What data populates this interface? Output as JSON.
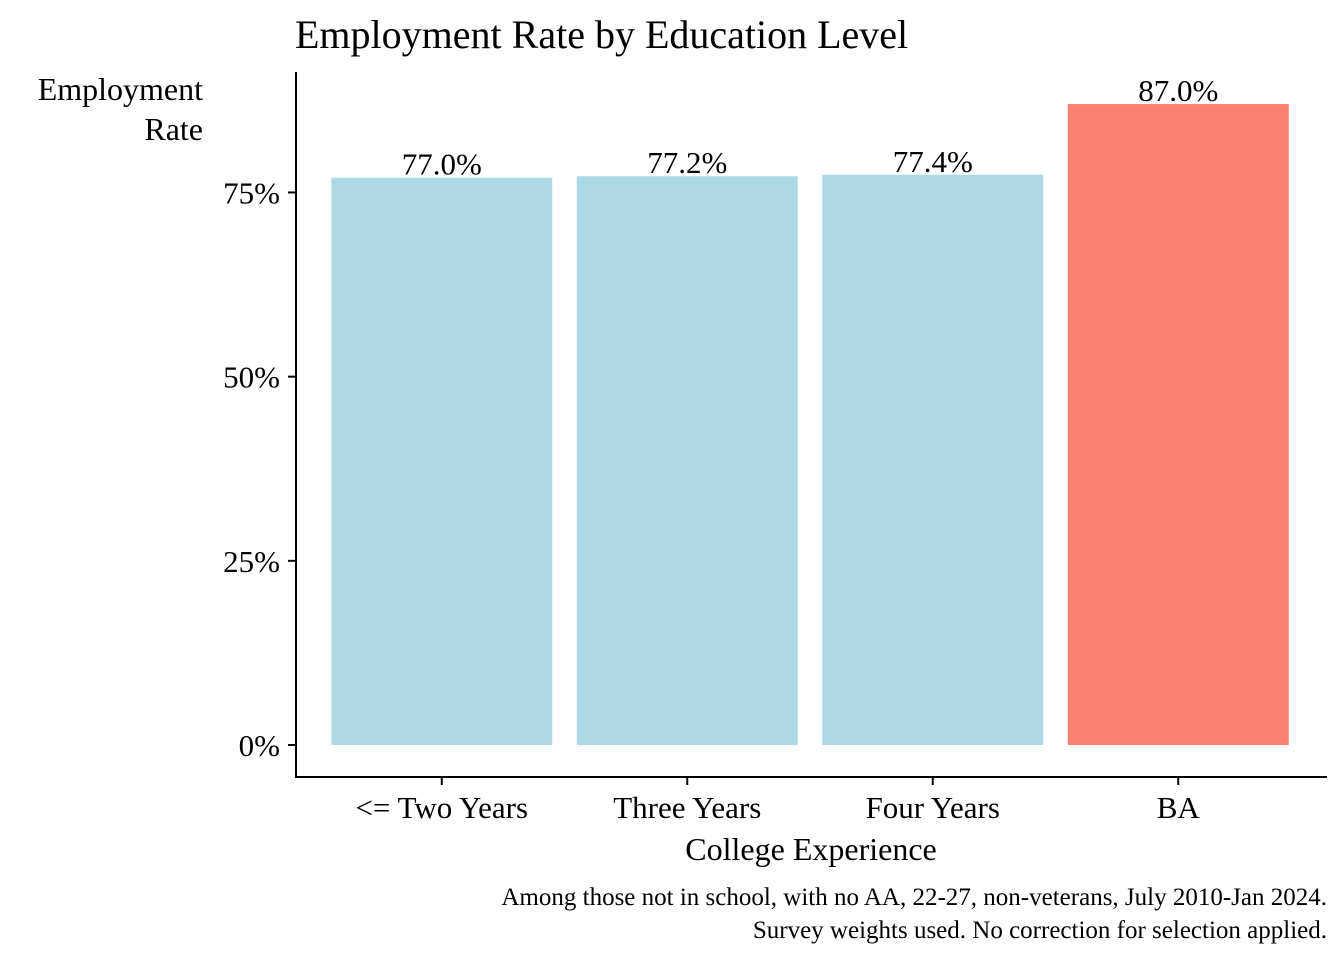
{
  "chart_data": {
    "type": "bar",
    "title": "Employment Rate by Education Level",
    "ylabel_lines": [
      "Employment",
      "Rate"
    ],
    "xlabel": "College Experience",
    "categories": [
      "<= Two Years",
      "Three Years",
      "Four Years",
      "BA"
    ],
    "values": [
      77.0,
      77.2,
      77.4,
      87.0
    ],
    "data_labels": [
      "77.0%",
      "77.2%",
      "77.4%",
      "87.0%"
    ],
    "bar_colors": [
      "#ADD8E6",
      "#ADD8E6",
      "#ADD8E6",
      "#FA8072"
    ],
    "yticks": [
      0,
      25,
      50,
      75
    ],
    "ytick_labels": [
      "0%",
      "25%",
      "50%",
      "75%"
    ],
    "ylim": [
      0,
      91.35
    ],
    "grid": false,
    "legend": "none",
    "caption_lines": [
      "Among those not in school, with no AA, 22-27, non-veterans, July 2010-Jan 2024.",
      "Survey weights used. No correction for selection applied."
    ]
  }
}
